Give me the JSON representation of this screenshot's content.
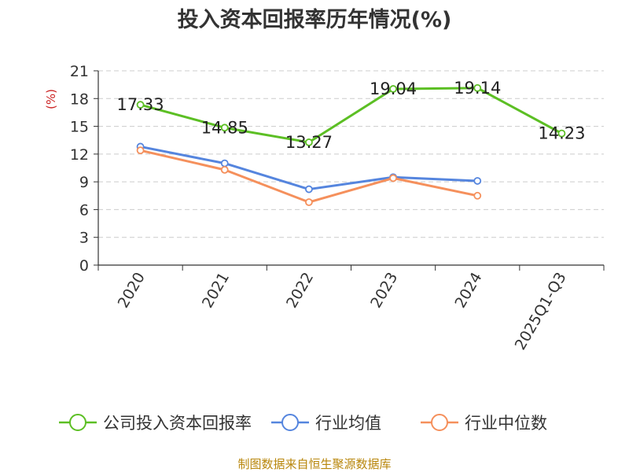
{
  "chart_data": {
    "type": "line",
    "title": "投入资本回报率历年情况(%)",
    "ylabel": "(%)",
    "ylim": [
      0,
      21
    ],
    "yticks": [
      0,
      3,
      6,
      9,
      12,
      15,
      18,
      21
    ],
    "grid": true,
    "legend_position": "bottom",
    "categories": [
      "2020",
      "2021",
      "2022",
      "2023",
      "2024",
      "2025Q1-Q3"
    ],
    "series": [
      {
        "name": "公司投入资本回报率",
        "color": "#5cbf24",
        "values": [
          17.33,
          14.85,
          13.27,
          19.04,
          19.14,
          14.23
        ],
        "labels": [
          "17.33",
          "14.85",
          "13.27",
          "19.04",
          "19.14",
          "14.23"
        ]
      },
      {
        "name": "行业均值",
        "color": "#5585de",
        "values": [
          12.8,
          11.0,
          8.2,
          9.5,
          9.1,
          null
        ]
      },
      {
        "name": "行业中位数",
        "color": "#f5905c",
        "values": [
          12.4,
          10.3,
          6.8,
          9.4,
          7.5,
          null
        ]
      }
    ],
    "source": "制图数据来自恒生聚源数据库",
    "colors": {
      "ylabel": "#cc2222",
      "source": "#b8860b",
      "axis": "#333333",
      "grid": "#cccccc"
    }
  }
}
